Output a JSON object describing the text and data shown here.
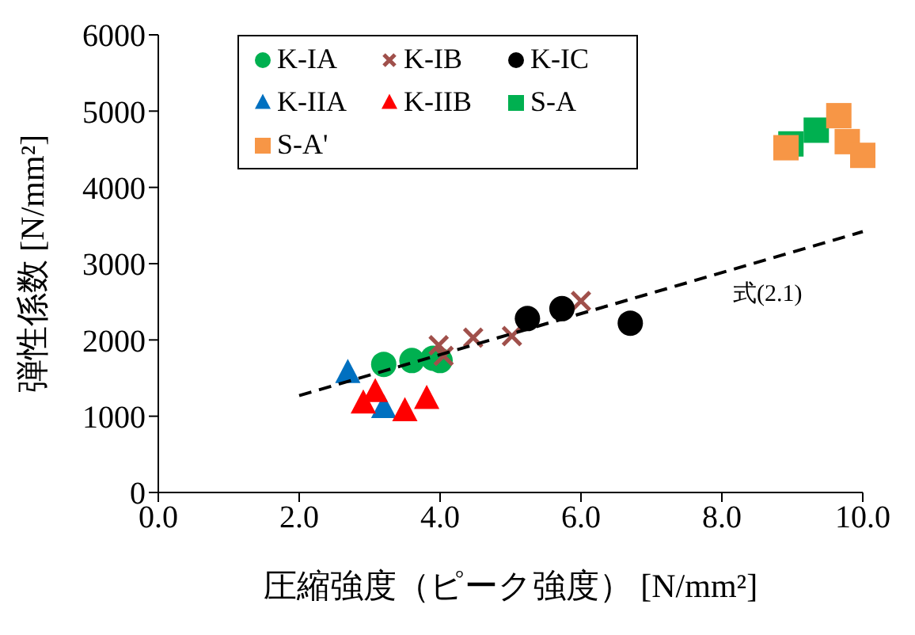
{
  "chart_data": {
    "type": "scatter",
    "xlabel": "圧縮強度（ピーク強度） [N/mm²]",
    "ylabel": "弾性係数 [N/mm²]",
    "xlim": [
      0,
      10
    ],
    "xticks": [
      {
        "value": 0,
        "label": "0.0"
      },
      {
        "value": 2,
        "label": "2.0"
      },
      {
        "value": 4,
        "label": "4.0"
      },
      {
        "value": 6,
        "label": "6.0"
      },
      {
        "value": 8,
        "label": "8.0"
      },
      {
        "value": 10,
        "label": "10.0"
      }
    ],
    "ylim": [
      0,
      6000
    ],
    "yticks": [
      0,
      1000,
      2000,
      3000,
      4000,
      5000,
      6000
    ],
    "grid": false,
    "legend": "top left",
    "annotations": [
      "式(2.1)"
    ],
    "series": [
      {
        "name": "K-IA",
        "color": "#00b050",
        "marker": "circle",
        "x": [
          3.2,
          3.6,
          3.9,
          4.0
        ],
        "values": [
          1680,
          1730,
          1760,
          1730
        ]
      },
      {
        "name": "K-IB",
        "color": "#a0504b",
        "marker": "cross",
        "x": [
          3.98,
          4.05,
          4.47,
          5.02,
          6.0
        ],
        "values": [
          1930,
          1790,
          2030,
          2050,
          2510
        ]
      },
      {
        "name": "K-IC",
        "color": "#000000",
        "marker": "circle",
        "x": [
          5.24,
          5.73,
          6.7
        ],
        "values": [
          2280,
          2410,
          2220
        ]
      },
      {
        "name": "K-IIA",
        "color": "#0070c0",
        "marker": "triangle",
        "x": [
          2.69,
          3.2
        ],
        "values": [
          1560,
          1100
        ]
      },
      {
        "name": "K-IIB",
        "color": "#ff0000",
        "marker": "triangle",
        "x": [
          3.08,
          2.91,
          3.5,
          3.81
        ],
        "values": [
          1310,
          1160,
          1060,
          1220
        ]
      },
      {
        "name": "S-A",
        "color": "#00b050",
        "marker": "square",
        "x": [
          8.98,
          9.34
        ],
        "values": [
          4570,
          4750
        ]
      },
      {
        "name": "S-A'",
        "color": "#f79646",
        "marker": "square",
        "x": [
          8.91,
          9.66,
          9.78,
          10.0
        ],
        "values": [
          4520,
          4940,
          4600,
          4420
        ]
      },
      {
        "type": "line",
        "color": "#000000",
        "line_style": "dashed",
        "marker": "none",
        "x": [
          2,
          10
        ],
        "values": [
          1270,
          3420
        ]
      }
    ]
  }
}
